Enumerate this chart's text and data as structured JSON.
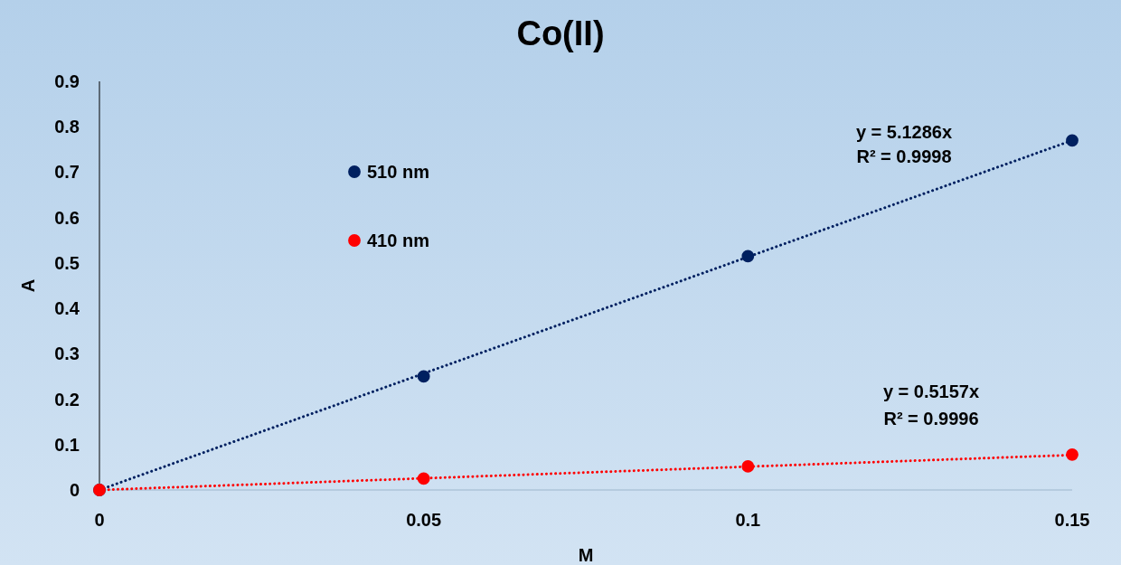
{
  "chart_data": {
    "type": "scatter",
    "title": "Co(II)",
    "xlabel": "M",
    "ylabel": "A",
    "xlim": [
      0,
      0.15
    ],
    "xticks": [
      0,
      0.05,
      0.1,
      0.15
    ],
    "ylim": [
      0,
      0.9
    ],
    "yticks": [
      0,
      0.1,
      0.2,
      0.3,
      0.4,
      0.5,
      0.6,
      0.7,
      0.8,
      0.9
    ],
    "grid": false,
    "legend": "top left",
    "marker": "circle",
    "series": [
      {
        "name": "510 nm",
        "color": "#002060",
        "x": [
          0,
          0.05,
          0.1,
          0.15
        ],
        "values": [
          0,
          0.25,
          0.515,
          0.77
        ]
      },
      {
        "name": "410 nm",
        "color": "#ff0000",
        "x": [
          0,
          0.05,
          0.1,
          0.15
        ],
        "values": [
          0,
          0.025,
          0.052,
          0.078
        ]
      },
      {
        "type": "line",
        "line_style": "dotted",
        "marker": "none",
        "color": "#002060",
        "x": [
          0,
          0.15
        ],
        "values": [
          0,
          0.77
        ]
      },
      {
        "type": "line",
        "line_style": "dotted",
        "marker": "none",
        "color": "#ff0000",
        "x": [
          0,
          0.15
        ],
        "values": [
          0,
          0.077
        ]
      }
    ],
    "annotations": [
      "y = 5.1286x",
      "R² = 0.9998",
      "y = 0.5157x",
      "R² = 0.9996"
    ]
  }
}
